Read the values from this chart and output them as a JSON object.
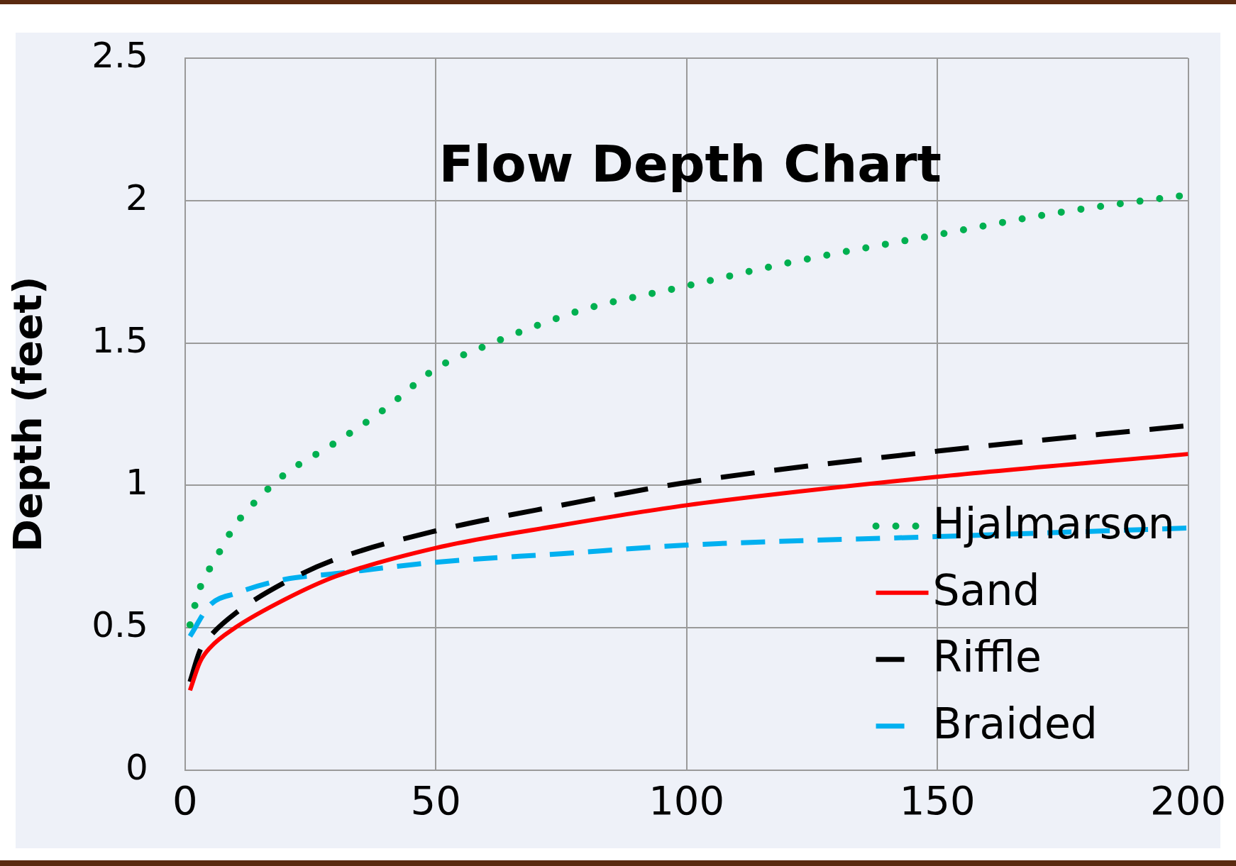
{
  "chart_data": {
    "type": "line",
    "title": "Flow Depth Chart",
    "ylabel": "Depth (feet)",
    "xlim": [
      0,
      200
    ],
    "xticks": [
      0,
      50,
      100,
      150,
      200
    ],
    "ylim": [
      0,
      2.5
    ],
    "yticks": [
      0,
      0.5,
      1,
      1.5,
      2,
      2.5
    ],
    "grid": true,
    "legend": "bottom right",
    "marker": "none",
    "series": [
      {
        "name": "Hjalmarson",
        "color": "#00b050",
        "line_style": "dotted",
        "x": [
          1,
          2,
          3,
          5,
          7,
          10,
          15,
          20,
          30,
          40,
          50,
          60,
          70,
          80,
          100,
          120,
          150,
          175,
          200
        ],
        "values": [
          0.51,
          0.58,
          0.64,
          0.71,
          0.77,
          0.86,
          0.96,
          1.04,
          1.15,
          1.27,
          1.41,
          1.49,
          1.56,
          1.62,
          1.7,
          1.78,
          1.88,
          1.96,
          2.02
        ]
      },
      {
        "name": "Sand",
        "color": "#ff0000",
        "line_style": "solid",
        "x": [
          1,
          3,
          5,
          10,
          20,
          30,
          50,
          75,
          100,
          150,
          200
        ],
        "values": [
          0.28,
          0.38,
          0.43,
          0.5,
          0.6,
          0.68,
          0.78,
          0.86,
          0.93,
          1.03,
          1.11
        ]
      },
      {
        "name": "Riffle",
        "color": "#000000",
        "line_style": "dashed",
        "x": [
          1,
          3,
          5,
          10,
          20,
          30,
          50,
          75,
          100,
          150,
          200
        ],
        "values": [
          0.31,
          0.42,
          0.47,
          0.55,
          0.66,
          0.74,
          0.84,
          0.93,
          1.01,
          1.12,
          1.21
        ]
      },
      {
        "name": "Braided",
        "color": "#00b0f0",
        "line_style": "dashed",
        "x": [
          1,
          5,
          10,
          20,
          30,
          50,
          75,
          100,
          150,
          200
        ],
        "values": [
          0.47,
          0.58,
          0.62,
          0.67,
          0.69,
          0.73,
          0.76,
          0.79,
          0.82,
          0.85
        ]
      }
    ]
  }
}
